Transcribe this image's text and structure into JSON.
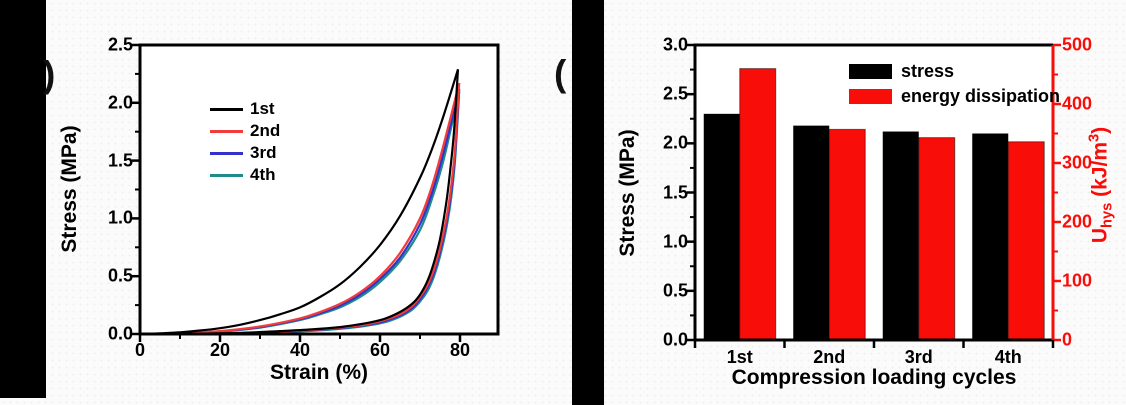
{
  "panel_labels": {
    "left_partial": ")",
    "right_partial": "("
  },
  "colors": {
    "frame": "#000000",
    "red": "#f90d09",
    "series_black": "#000000",
    "series_red": "#f23b3b",
    "series_blue": "#3333cc",
    "series_teal": "#1e8c8c",
    "plot_background": "#ffffff",
    "page_background": "#fcfbfb",
    "strip_black": "#000000"
  },
  "chart_data": [
    {
      "type": "line",
      "title": "",
      "xlabel": "Strain (%)",
      "ylabel": "Stress (MPa)",
      "xlim": [
        0,
        89.5
      ],
      "ylim": [
        0,
        2.5
      ],
      "grid": false,
      "x_ticks": [
        0,
        20,
        40,
        60,
        80
      ],
      "x_minor_ticks": [
        10,
        30,
        50,
        70
      ],
      "y_ticks": [
        0.0,
        0.5,
        1.0,
        1.5,
        2.0,
        2.5
      ],
      "y_tick_labels": [
        "0.0",
        "0.5",
        "1.0",
        "1.5",
        "2.0",
        "2.5"
      ],
      "y_minor_ticks": [
        0.25,
        0.75,
        1.25,
        1.75,
        2.25
      ],
      "legend_position": "upper-left-inside",
      "series": [
        {
          "name": "1st",
          "color": "#000000",
          "peak_stress_MPa": 2.29,
          "loading": [
            [
              0,
              0
            ],
            [
              5,
              0.005
            ],
            [
              10,
              0.015
            ],
            [
              15,
              0.03
            ],
            [
              20,
              0.05
            ],
            [
              25,
              0.08
            ],
            [
              30,
              0.12
            ],
            [
              35,
              0.17
            ],
            [
              40,
              0.23
            ],
            [
              45,
              0.32
            ],
            [
              50,
              0.43
            ],
            [
              55,
              0.58
            ],
            [
              60,
              0.77
            ],
            [
              65,
              1.02
            ],
            [
              70,
              1.35
            ],
            [
              73,
              1.6
            ],
            [
              76,
              1.9
            ],
            [
              79.5,
              2.29
            ]
          ],
          "unloading": [
            [
              79.5,
              2.29
            ],
            [
              78.5,
              1.75
            ],
            [
              77.5,
              1.4
            ],
            [
              76.5,
              1.12
            ],
            [
              75,
              0.82
            ],
            [
              73.5,
              0.62
            ],
            [
              72,
              0.47
            ],
            [
              70,
              0.34
            ],
            [
              68,
              0.26
            ],
            [
              65,
              0.19
            ],
            [
              61,
              0.13
            ],
            [
              56,
              0.09
            ],
            [
              50,
              0.06
            ],
            [
              43,
              0.04
            ],
            [
              35,
              0.025
            ],
            [
              27,
              0.012
            ],
            [
              19,
              0.005
            ],
            [
              10,
              0
            ]
          ]
        },
        {
          "name": "2nd",
          "color": "#f23b3b",
          "peak_stress_MPa": 2.17,
          "loading": [
            [
              0,
              0
            ],
            [
              10,
              0.008
            ],
            [
              20,
              0.025
            ],
            [
              30,
              0.065
            ],
            [
              40,
              0.135
            ],
            [
              45,
              0.19
            ],
            [
              50,
              0.26
            ],
            [
              55,
              0.36
            ],
            [
              60,
              0.5
            ],
            [
              65,
              0.7
            ],
            [
              70,
              1.0
            ],
            [
              73,
              1.28
            ],
            [
              76,
              1.65
            ],
            [
              79.8,
              2.17
            ]
          ],
          "unloading": [
            [
              79.8,
              2.17
            ],
            [
              78.8,
              1.62
            ],
            [
              77.8,
              1.28
            ],
            [
              76.5,
              0.98
            ],
            [
              75,
              0.74
            ],
            [
              73.5,
              0.56
            ],
            [
              72,
              0.43
            ],
            [
              70,
              0.32
            ],
            [
              68,
              0.24
            ],
            [
              65,
              0.17
            ],
            [
              61,
              0.12
            ],
            [
              56,
              0.08
            ],
            [
              50,
              0.055
            ],
            [
              43,
              0.035
            ],
            [
              35,
              0.02
            ],
            [
              27,
              0.01
            ],
            [
              19,
              0.004
            ],
            [
              9,
              0
            ]
          ]
        },
        {
          "name": "3rd",
          "color": "#3333cc",
          "peak_stress_MPa": 2.12,
          "loading": [
            [
              0,
              0
            ],
            [
              10,
              0.007
            ],
            [
              20,
              0.023
            ],
            [
              30,
              0.06
            ],
            [
              40,
              0.128
            ],
            [
              45,
              0.18
            ],
            [
              50,
              0.245
            ],
            [
              55,
              0.34
            ],
            [
              60,
              0.475
            ],
            [
              65,
              0.66
            ],
            [
              70,
              0.95
            ],
            [
              73,
              1.22
            ],
            [
              76,
              1.58
            ],
            [
              79.8,
              2.12
            ]
          ],
          "unloading": [
            [
              79.8,
              2.12
            ],
            [
              78.8,
              1.57
            ],
            [
              77.8,
              1.23
            ],
            [
              76.5,
              0.94
            ],
            [
              75,
              0.71
            ],
            [
              73.5,
              0.53
            ],
            [
              72,
              0.41
            ],
            [
              70,
              0.3
            ],
            [
              68,
              0.225
            ],
            [
              65,
              0.16
            ],
            [
              61,
              0.11
            ],
            [
              56,
              0.075
            ],
            [
              50,
              0.05
            ],
            [
              43,
              0.032
            ],
            [
              35,
              0.018
            ],
            [
              27,
              0.009
            ],
            [
              19,
              0.003
            ],
            [
              9,
              0
            ]
          ]
        },
        {
          "name": "4th",
          "color": "#1e8c8c",
          "peak_stress_MPa": 2.1,
          "loading": [
            [
              0,
              0
            ],
            [
              10,
              0.006
            ],
            [
              20,
              0.02
            ],
            [
              30,
              0.055
            ],
            [
              40,
              0.12
            ],
            [
              45,
              0.17
            ],
            [
              50,
              0.23
            ],
            [
              55,
              0.32
            ],
            [
              60,
              0.45
            ],
            [
              65,
              0.63
            ],
            [
              70,
              0.9
            ],
            [
              73,
              1.17
            ],
            [
              76,
              1.52
            ],
            [
              79.8,
              2.1
            ]
          ],
          "unloading": [
            [
              79.8,
              2.1
            ],
            [
              78.8,
              1.52
            ],
            [
              77.8,
              1.18
            ],
            [
              76.5,
              0.9
            ],
            [
              75,
              0.67
            ],
            [
              73.5,
              0.5
            ],
            [
              72,
              0.38
            ],
            [
              70,
              0.28
            ],
            [
              68,
              0.21
            ],
            [
              65,
              0.15
            ],
            [
              61,
              0.1
            ],
            [
              56,
              0.068
            ],
            [
              50,
              0.045
            ],
            [
              43,
              0.028
            ],
            [
              35,
              0.015
            ],
            [
              27,
              0.007
            ],
            [
              19,
              0.002
            ],
            [
              9,
              0
            ]
          ]
        }
      ]
    },
    {
      "type": "bar",
      "title": "",
      "xlabel": "Compression loading cycles",
      "ylabel_left": "Stress (MPa)",
      "ylabel_right_parts": {
        "base": "U",
        "sub": "hys",
        "mid": " (kJ/m",
        "sup": "3",
        "end": ")"
      },
      "categories": [
        "1st",
        "2nd",
        "3rd",
        "4th"
      ],
      "ylim_left": [
        0,
        3.0
      ],
      "ylim_right": [
        0,
        500
      ],
      "grid": false,
      "y_ticks_left": [
        "0.0",
        "0.5",
        "1.0",
        "1.5",
        "2.0",
        "2.5",
        "3.0"
      ],
      "y_minor_ticks_left": [
        0.25,
        0.75,
        1.25,
        1.75,
        2.25,
        2.75
      ],
      "y_ticks_right": [
        "0",
        "100",
        "200",
        "300",
        "400",
        "500"
      ],
      "y_minor_ticks_right": [
        50,
        150,
        250,
        350,
        450
      ],
      "legend_position": "upper-right-inside",
      "series": [
        {
          "name": "stress",
          "axis": "left",
          "unit": "MPa",
          "color": "#000000",
          "values": [
            2.3,
            2.18,
            2.12,
            2.1
          ]
        },
        {
          "name": "energy dissipation",
          "axis": "right",
          "unit": "kJ/m3",
          "color": "#f90d09",
          "values": [
            460,
            357,
            343,
            336
          ]
        }
      ]
    }
  ]
}
